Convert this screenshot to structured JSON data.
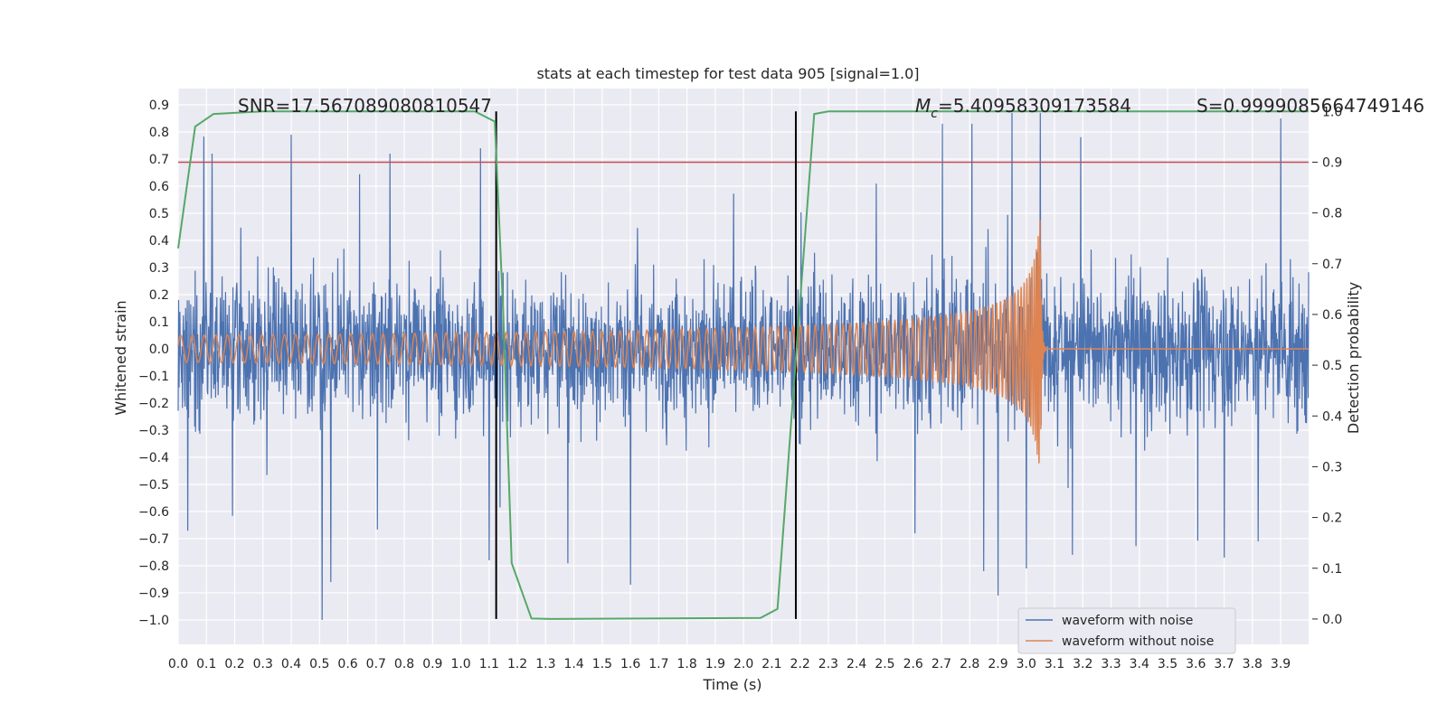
{
  "chart_data": {
    "type": "line",
    "title": "stats at each timestep for test data 905 [signal=1.0]",
    "xlabel": "Time (s)",
    "ylabel": "Whitened strain",
    "y2label": "Detection probability",
    "xlim": [
      0.0,
      3.999
    ],
    "ylim": [
      -1.09,
      0.96
    ],
    "y2lim": [
      -0.05,
      1.045
    ],
    "xticks": [
      0.0,
      0.1,
      0.2,
      0.3,
      0.4,
      0.5,
      0.6,
      0.7,
      0.8,
      0.9,
      1.0,
      1.1,
      1.2,
      1.3,
      1.4,
      1.5,
      1.6,
      1.7,
      1.8,
      1.9,
      2.0,
      2.1,
      2.2,
      2.3,
      2.4,
      2.5,
      2.6,
      2.7,
      2.8,
      2.9,
      3.0,
      3.1,
      3.2,
      3.3,
      3.4,
      3.5,
      3.6,
      3.7,
      3.8,
      3.9
    ],
    "yticks": [
      -1.0,
      -0.9,
      -0.8,
      -0.7,
      -0.6,
      -0.5,
      -0.4,
      -0.3,
      -0.2,
      -0.1,
      0.0,
      0.1,
      0.2,
      0.3,
      0.4,
      0.5,
      0.6,
      0.7,
      0.8,
      0.9
    ],
    "y2ticks": [
      0.0,
      0.1,
      0.2,
      0.3,
      0.4,
      0.5,
      0.6,
      0.7,
      0.8,
      0.9,
      1.0
    ],
    "annotations": {
      "snr": "SNR=17.567089080810547",
      "mc_symbol": "M",
      "mc_sub": "c",
      "mc_value": "=5.40958309173584",
      "s": "S=0.9999085664749146"
    },
    "threshold": {
      "value_y2": 0.9,
      "color": "#c44e52"
    },
    "vlines_x": [
      1.125,
      2.185
    ],
    "series": [
      {
        "name": "waveform with noise",
        "color": "#4c72b0",
        "axis": "left",
        "kind": "noise",
        "range": [
          -1.0,
          0.87
        ],
        "spikes": [
          [
            0.51,
            -1.0
          ],
          [
            0.54,
            -0.86
          ],
          [
            0.4,
            0.79
          ],
          [
            0.12,
            0.72
          ],
          [
            0.75,
            0.72
          ],
          [
            1.07,
            0.74
          ],
          [
            2.95,
            0.87
          ],
          [
            3.05,
            0.87
          ],
          [
            3.9,
            0.85
          ],
          [
            2.9,
            -0.91
          ],
          [
            3.0,
            -0.81
          ],
          [
            1.1,
            -0.78
          ],
          [
            3.7,
            -0.77
          ],
          [
            1.6,
            -0.87
          ],
          [
            2.85,
            -0.82
          ],
          [
            3.82,
            -0.71
          ]
        ]
      },
      {
        "name": "waveform without noise",
        "color": "#dd8452",
        "axis": "left",
        "kind": "chirp",
        "t_merger": 3.05,
        "amp_start": 0.05,
        "amp_peak": 0.5
      },
      {
        "name": "detection probability",
        "color": "#55a868",
        "axis": "right",
        "kind": "line",
        "x": [
          0.0,
          0.06,
          0.125,
          0.3,
          1.05,
          1.12,
          1.15,
          1.18,
          1.25,
          1.32,
          2.06,
          2.12,
          2.19,
          2.25,
          2.3,
          3.999
        ],
        "y": [
          0.73,
          0.97,
          0.995,
          1.0,
          1.0,
          0.98,
          0.6,
          0.11,
          0.001,
          0.0,
          0.002,
          0.02,
          0.55,
          0.995,
          1.0,
          1.0
        ]
      }
    ],
    "legend": {
      "placement": "lower-right",
      "entries": [
        "waveform with noise",
        "waveform without noise"
      ]
    }
  }
}
